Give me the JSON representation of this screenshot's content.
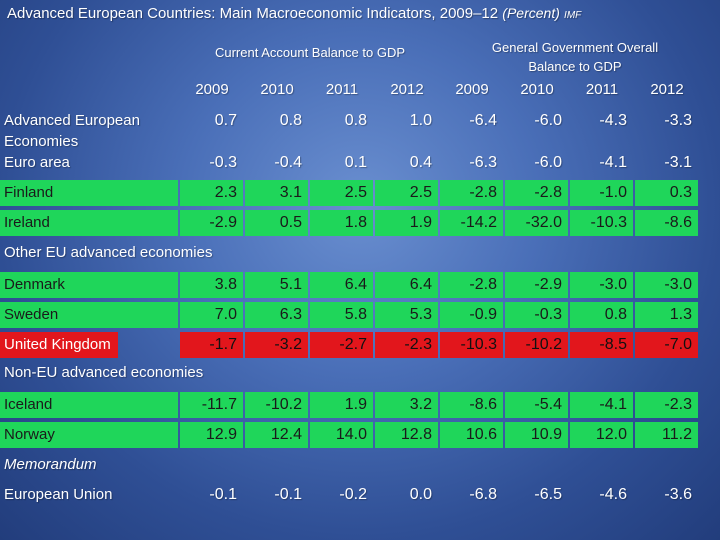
{
  "header": {
    "title_main": "Advanced European Countries: Main Macroeconomic Indicators, 2009–12",
    "title_unit": "(Percent)",
    "title_source": "IMF",
    "group1": "Current Account Balance to GDP",
    "group2_line1": "General Government Overall",
    "group2_line2": "Balance to GDP"
  },
  "chart_data": {
    "type": "table",
    "columns": [
      "2009",
      "2010",
      "2011",
      "2012",
      "2009",
      "2010",
      "2011",
      "2012"
    ],
    "column_groups": [
      "Current Account Balance to GDP",
      "General Government Overall Balance to GDP"
    ],
    "rows": [
      {
        "label": "Advanced European Economies",
        "style": "plain",
        "values": [
          "0.7",
          "0.8",
          "0.8",
          "1.0",
          "-6.4",
          "-6.0",
          "-4.3",
          "-3.3"
        ]
      },
      {
        "label": "Euro area",
        "style": "plain",
        "values": [
          "-0.3",
          "-0.4",
          "0.1",
          "0.4",
          "-6.3",
          "-6.0",
          "-4.1",
          "-3.1"
        ]
      },
      {
        "label": "Finland",
        "style": "green",
        "values": [
          "2.3",
          "3.1",
          "2.5",
          "2.5",
          "-2.8",
          "-2.8",
          "-1.0",
          "0.3"
        ]
      },
      {
        "label": "Ireland",
        "style": "green",
        "values": [
          "-2.9",
          "0.5",
          "1.8",
          "1.9",
          "-14.2",
          "-32.0",
          "-10.3",
          "-8.6"
        ]
      },
      {
        "section": "Other EU advanced economies"
      },
      {
        "label": "Denmark",
        "style": "green",
        "values": [
          "3.8",
          "5.1",
          "6.4",
          "6.4",
          "-2.8",
          "-2.9",
          "-3.0",
          "-3.0"
        ]
      },
      {
        "label": "Sweden",
        "style": "green",
        "values": [
          "7.0",
          "6.3",
          "5.8",
          "5.3",
          "-0.9",
          "-0.3",
          "0.8",
          "1.3"
        ]
      },
      {
        "label": "United Kingdom",
        "style": "red",
        "values": [
          "-1.7",
          "-3.2",
          "-2.7",
          "-2.3",
          "-10.3",
          "-10.2",
          "-8.5",
          "-7.0"
        ]
      },
      {
        "section": "Non-EU advanced economies"
      },
      {
        "label": "Iceland",
        "style": "green",
        "values": [
          "-11.7",
          "-10.2",
          "1.9",
          "3.2",
          "-8.6",
          "-5.4",
          "-4.1",
          "-2.3"
        ]
      },
      {
        "label": "Norway",
        "style": "green",
        "values": [
          "12.9",
          "12.4",
          "14.0",
          "12.8",
          "10.6",
          "10.9",
          "12.0",
          "11.2"
        ]
      },
      {
        "section": "Memorandum",
        "italic": true
      },
      {
        "label": "European Union",
        "style": "plain",
        "values": [
          "-0.1",
          "-0.1",
          "-0.2",
          "0.0",
          "-6.8",
          "-6.5",
          "-4.6",
          "-3.6"
        ]
      }
    ]
  },
  "colors": {
    "highlight_green": "#1fd65a",
    "highlight_red": "#e2161c",
    "background": "#3f62aa"
  }
}
